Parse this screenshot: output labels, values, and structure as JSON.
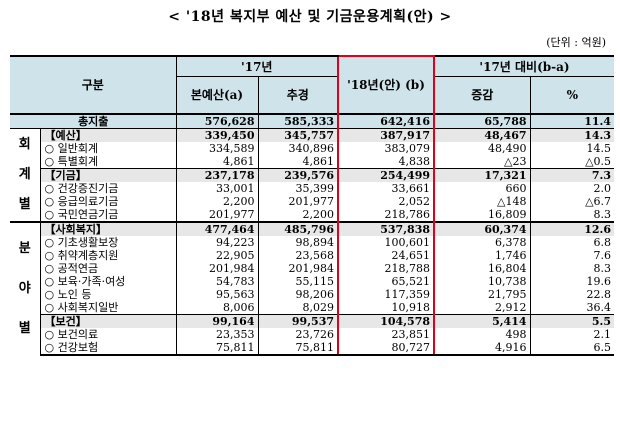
{
  "title": "< '18년 복지부 예산 및 기금운용계획(안) >",
  "unit": "(단위 : 억원)",
  "header": {
    "category": "구분",
    "year17": "'17년",
    "main_budget": "본예산(a)",
    "supplementary": "추경",
    "year18": "'18년(안) (b)",
    "compare": "'17년 대비(b-a)",
    "change": "증감",
    "percent": "%"
  },
  "side_labels": {
    "account": [
      "회",
      "계",
      "별"
    ],
    "field": [
      "분",
      "야",
      "별"
    ]
  },
  "rows": [
    {
      "label": "총지출",
      "a": "576,628",
      "supp": "585,333",
      "b": "642,416",
      "diff": "65,788",
      "pct": "11.4",
      "kind": "total"
    },
    {
      "label": "【예산】",
      "a": "339,450",
      "supp": "345,757",
      "b": "387,917",
      "diff": "48,467",
      "pct": "14.3",
      "kind": "sub"
    },
    {
      "label": "○ 일반회계",
      "a": "334,589",
      "supp": "340,896",
      "b": "383,079",
      "diff": "48,490",
      "pct": "14.5",
      "kind": "item"
    },
    {
      "label": "○ 특별회계",
      "a": "4,861",
      "supp": "4,861",
      "b": "4,838",
      "diff": "△23",
      "pct": "△0.5",
      "kind": "item"
    },
    {
      "label": "【기금】",
      "a": "237,178",
      "supp": "239,576",
      "b": "254,499",
      "diff": "17,321",
      "pct": "7.3",
      "kind": "sub"
    },
    {
      "label": "○ 건강증진기금",
      "a": "33,001",
      "supp": "35,399",
      "b": "33,661",
      "diff": "660",
      "pct": "2.0",
      "kind": "item"
    },
    {
      "label": "○ 응급의료기금",
      "a": "2,200",
      "supp": "201,977",
      "b": "2,052",
      "diff": "△148",
      "pct": "△6.7",
      "kind": "item"
    },
    {
      "label": "○ 국민연금기금",
      "a": "201,977",
      "supp": "2,200",
      "b": "218,786",
      "diff": "16,809",
      "pct": "8.3",
      "kind": "item"
    },
    {
      "label": "【사회복지】",
      "a": "477,464",
      "supp": "485,796",
      "b": "537,838",
      "diff": "60,374",
      "pct": "12.6",
      "kind": "sub"
    },
    {
      "label": "○ 기초생활보장",
      "a": "94,223",
      "supp": "98,894",
      "b": "100,601",
      "diff": "6,378",
      "pct": "6.8",
      "kind": "item"
    },
    {
      "label": "○ 취약계층지원",
      "a": "22,905",
      "supp": "23,568",
      "b": "24,651",
      "diff": "1,746",
      "pct": "7.6",
      "kind": "item"
    },
    {
      "label": "○ 공적연금",
      "a": "201,984",
      "supp": "201,984",
      "b": "218,788",
      "diff": "16,804",
      "pct": "8.3",
      "kind": "item"
    },
    {
      "label": "○ 보육·가족·여성",
      "a": "54,783",
      "supp": "55,115",
      "b": "65,521",
      "diff": "10,738",
      "pct": "19.6",
      "kind": "item"
    },
    {
      "label": "○ 노인 등",
      "a": "95,563",
      "supp": "98,206",
      "b": "117,359",
      "diff": "21,795",
      "pct": "22.8",
      "kind": "item"
    },
    {
      "label": "○ 사회복지일반",
      "a": "8,006",
      "supp": "8,029",
      "b": "10,918",
      "diff": "2,912",
      "pct": "36.4",
      "kind": "item"
    },
    {
      "label": "【보건】",
      "a": "99,164",
      "supp": "99,537",
      "b": "104,578",
      "diff": "5,414",
      "pct": "5.5",
      "kind": "sub"
    },
    {
      "label": "○ 보건의료",
      "a": "23,353",
      "supp": "23,726",
      "b": "23,851",
      "diff": "498",
      "pct": "2.1",
      "kind": "item"
    },
    {
      "label": "○ 건강보험",
      "a": "75,811",
      "supp": "75,811",
      "b": "80,727",
      "diff": "4,916",
      "pct": "6.5",
      "kind": "item"
    }
  ]
}
